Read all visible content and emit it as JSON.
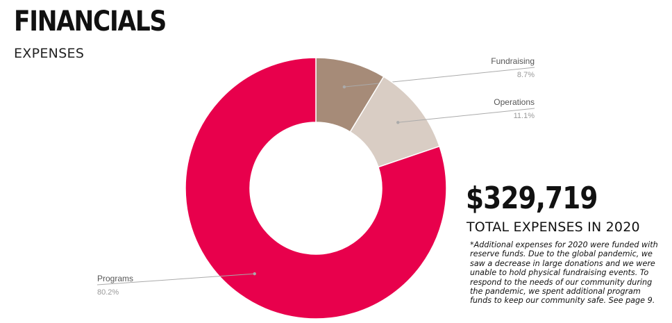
{
  "header": {
    "title": "FINANCIALS",
    "subtitle": "EXPENSES"
  },
  "summary": {
    "total": "$329,719",
    "total_label": "TOTAL EXPENSES IN 2020",
    "note": "*Additional expenses for 2020 were funded with reserve funds. Due to the global pandemic, we saw a decrease in large donations and we were unable to hold physical fundraising events. To respond to the needs of our community during the pandemic, we spent additional program funds to keep our community safe. See page 9."
  },
  "chart_data": {
    "type": "pie",
    "title": "",
    "donut": true,
    "slices": [
      {
        "label": "Fundraising",
        "value": 8.7,
        "display": "8.7%",
        "color": "#a68b78"
      },
      {
        "label": "Operations",
        "value": 11.1,
        "display": "11.1%",
        "color": "#d9cdc4"
      },
      {
        "label": "Programs",
        "value": 80.2,
        "display": "80.2%",
        "color": "#e8004c"
      }
    ]
  }
}
